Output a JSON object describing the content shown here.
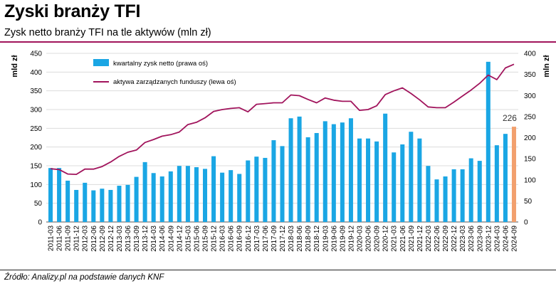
{
  "header": {
    "title": "Zyski branży TFI",
    "subtitle": "Zysk netto branży TFI na tle aktywów (mln zł)"
  },
  "footer": {
    "source": "Źródło: Analizy.pl na podstawie danych KNF"
  },
  "chart_data": {
    "type": "bar+line",
    "left_axis": {
      "label": "mld zł",
      "range": [
        0,
        450
      ],
      "ticks": [
        "0",
        "50",
        "100",
        "150",
        "200",
        "250",
        "300",
        "350",
        "400",
        "450"
      ]
    },
    "right_axis": {
      "label": "mln zł",
      "range": [
        0,
        400
      ],
      "ticks": [
        "0",
        "50",
        "100",
        "150",
        "200",
        "250",
        "300",
        "350",
        "400"
      ]
    },
    "legend": {
      "placement": "top-left",
      "bar_label": "kwartalny zysk netto (prawa oś)",
      "line_label": "aktywa zarządzanych funduszy (lewa oś)"
    },
    "colors": {
      "bars": "#1aa6e4",
      "highlight_bar": "#f2a06e",
      "line": "#a1145c"
    },
    "grid": "horizontal",
    "annotation": {
      "text": "226",
      "category": "2024-09"
    },
    "categories": [
      "2011-03",
      "2011-06",
      "2011-09",
      "2011-12",
      "2012-03",
      "2012-06",
      "2012-09",
      "2012-12",
      "2013-03",
      "2013-06",
      "2013-09",
      "2013-12",
      "2014-03",
      "2014-06",
      "2014-09",
      "2014-12",
      "2015-03",
      "2015-06",
      "2015-09",
      "2015-12",
      "2016-03",
      "2016-06",
      "2016-09",
      "2016-12",
      "2017-03",
      "2017-06",
      "2017-09",
      "2017-12",
      "2018-03",
      "2018-06",
      "2018-09",
      "2018-12",
      "2019-03",
      "2019-06",
      "2019-09",
      "2019-12",
      "2020-03",
      "2020-06",
      "2020-09",
      "2020-12",
      "2021-03",
      "2021-06",
      "2021-09",
      "2021-12",
      "2022-03",
      "2022-06",
      "2022-09",
      "2022-12",
      "2023-03",
      "2023-06",
      "2023-09",
      "2023-12",
      "2024-03",
      "2024-06",
      "2024-09"
    ],
    "series": [
      {
        "name": "kwartalny zysk netto (prawa oś)",
        "type": "bar",
        "axis": "right",
        "values": [
          128,
          128,
          98,
          76,
          93,
          75,
          79,
          76,
          86,
          88,
          107,
          142,
          116,
          108,
          120,
          133,
          133,
          130,
          126,
          156,
          117,
          123,
          114,
          146,
          155,
          152,
          194,
          180,
          246,
          250,
          201,
          211,
          239,
          232,
          236,
          246,
          198,
          198,
          191,
          257,
          165,
          184,
          214,
          198,
          133,
          101,
          108,
          125,
          125,
          151,
          145,
          380,
          182,
          209,
          226
        ]
      },
      {
        "name": "aktywa zarządzanych funduszy (lewa oś)",
        "type": "line",
        "axis": "left",
        "values": [
          142,
          140,
          128,
          127,
          141,
          141,
          148,
          160,
          175,
          186,
          192,
          212,
          220,
          229,
          233,
          240,
          260,
          266,
          278,
          295,
          300,
          303,
          305,
          294,
          314,
          316,
          318,
          318,
          339,
          337,
          327,
          318,
          331,
          325,
          322,
          322,
          298,
          300,
          310,
          340,
          350,
          358,
          343,
          326,
          307,
          305,
          305,
          320,
          336,
          352,
          370,
          392,
          380,
          411,
          421
        ]
      }
    ]
  }
}
